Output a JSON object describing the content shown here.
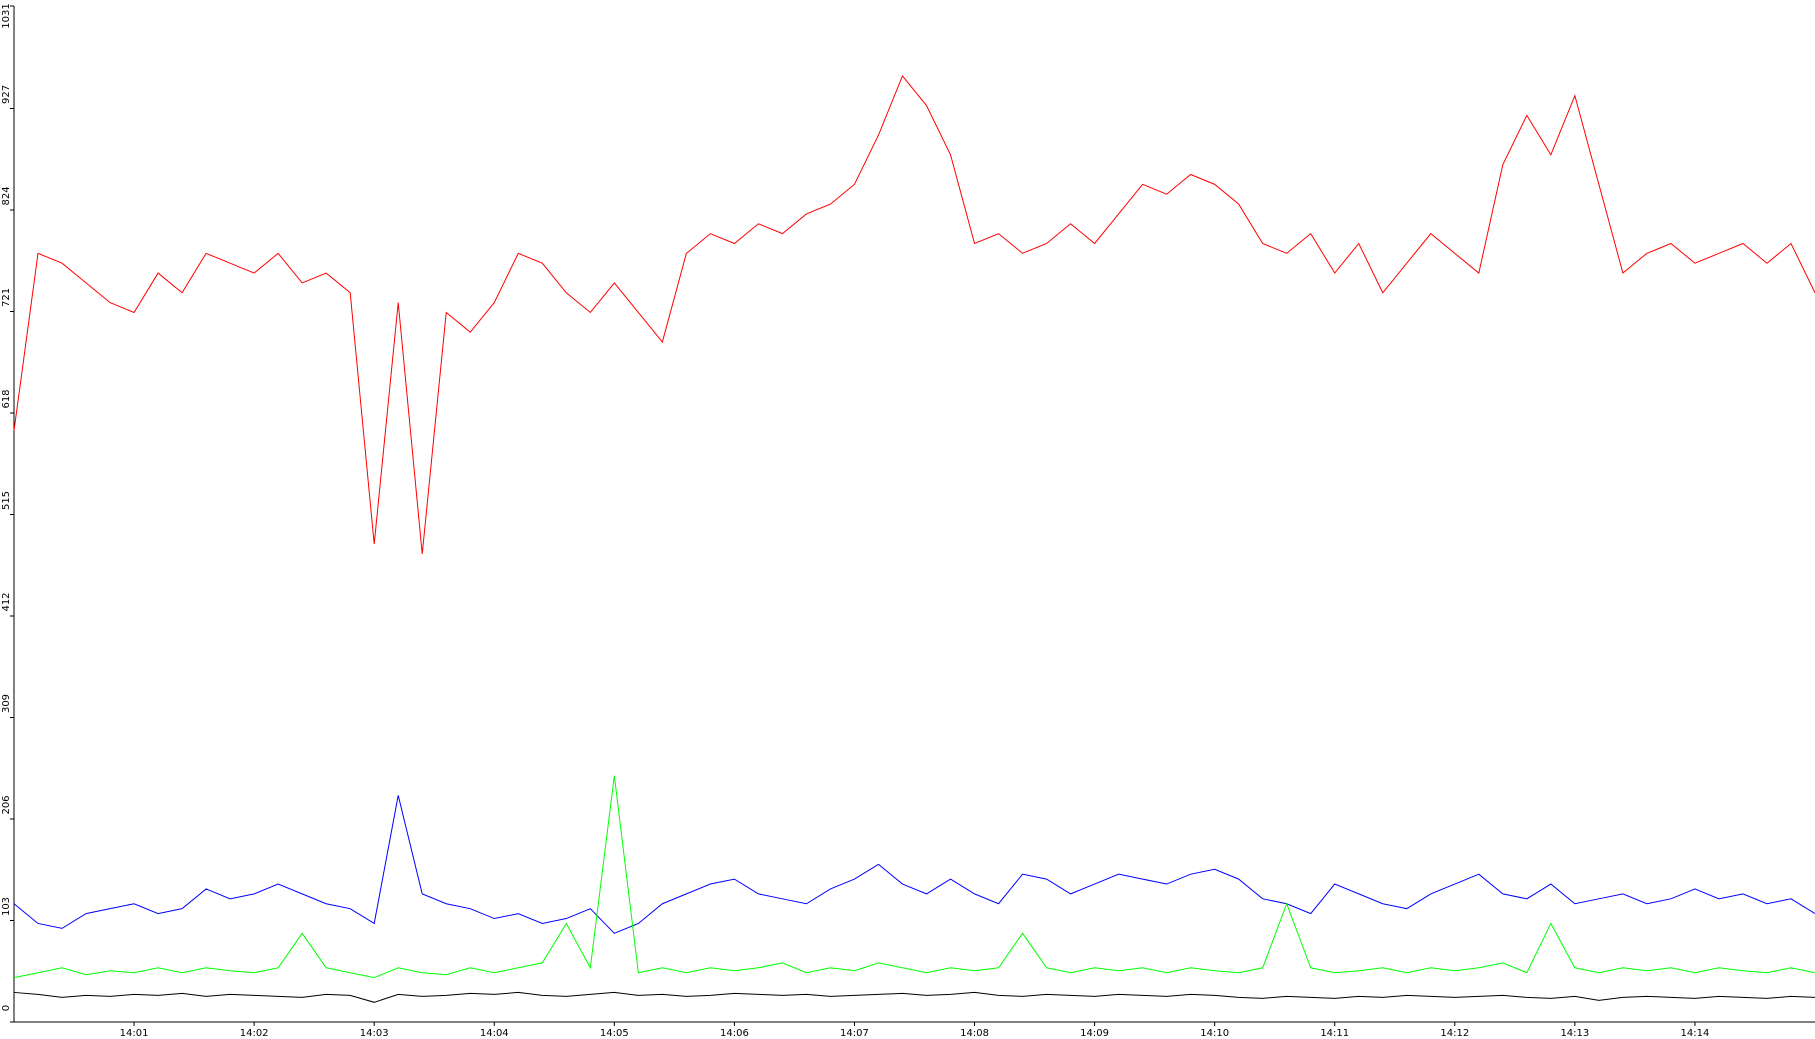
{
  "chart_data": {
    "type": "line",
    "x": [
      0,
      0.2,
      0.4,
      0.6,
      0.8,
      1,
      1.2,
      1.4,
      1.6,
      1.8,
      2,
      2.2,
      2.4,
      2.6,
      2.8,
      3,
      3.2,
      3.4,
      3.6,
      3.8,
      4,
      4.2,
      4.4,
      4.6,
      4.8,
      5,
      5.2,
      5.4,
      5.6,
      5.8,
      6,
      6.2,
      6.4,
      6.6,
      6.8,
      7,
      7.2,
      7.4,
      7.6,
      7.8,
      8,
      8.2,
      8.4,
      8.6,
      8.8,
      9,
      9.2,
      9.4,
      9.6,
      9.8,
      10,
      10.2,
      10.4,
      10.6,
      10.8,
      11,
      11.2,
      11.4,
      11.6,
      11.8,
      12,
      12.2,
      12.4,
      12.6,
      12.8,
      13,
      13.2,
      13.4,
      13.6,
      13.8,
      14,
      14.2,
      14.4,
      14.6,
      14.8,
      15
    ],
    "series": [
      {
        "color": "#ff0000",
        "values": [
          600,
          780,
          770,
          750,
          730,
          720,
          760,
          740,
          780,
          770,
          760,
          780,
          750,
          760,
          740,
          485,
          730,
          475,
          720,
          700,
          730,
          780,
          770,
          740,
          720,
          750,
          720,
          690,
          780,
          800,
          790,
          810,
          800,
          820,
          830,
          850,
          900,
          960,
          930,
          880,
          790,
          800,
          780,
          790,
          810,
          790,
          820,
          850,
          840,
          860,
          850,
          830,
          790,
          780,
          800,
          760,
          790,
          740,
          770,
          800,
          780,
          760,
          870,
          920,
          880,
          940,
          850,
          760,
          780,
          790,
          770,
          780,
          790,
          770,
          790,
          740
        ]
      },
      {
        "color": "#0000ff",
        "values": [
          120,
          100,
          95,
          110,
          115,
          120,
          110,
          115,
          135,
          125,
          130,
          140,
          130,
          120,
          115,
          100,
          230,
          130,
          120,
          115,
          105,
          110,
          100,
          105,
          115,
          90,
          100,
          120,
          130,
          140,
          145,
          130,
          125,
          120,
          135,
          145,
          160,
          140,
          130,
          145,
          130,
          120,
          150,
          145,
          130,
          140,
          150,
          145,
          140,
          150,
          155,
          145,
          125,
          120,
          110,
          140,
          130,
          120,
          115,
          130,
          140,
          150,
          130,
          125,
          140,
          120,
          125,
          130,
          120,
          125,
          135,
          125,
          130,
          120,
          125,
          110
        ]
      },
      {
        "color": "#00ff00",
        "values": [
          45,
          50,
          55,
          48,
          52,
          50,
          55,
          50,
          55,
          52,
          50,
          55,
          90,
          55,
          50,
          45,
          55,
          50,
          48,
          55,
          50,
          55,
          60,
          100,
          55,
          250,
          50,
          55,
          50,
          55,
          52,
          55,
          60,
          50,
          55,
          52,
          60,
          55,
          50,
          55,
          52,
          55,
          90,
          55,
          50,
          55,
          52,
          55,
          50,
          55,
          52,
          50,
          55,
          120,
          55,
          50,
          52,
          55,
          50,
          55,
          52,
          55,
          60,
          50,
          100,
          55,
          50,
          55,
          52,
          55,
          50,
          55,
          52,
          50,
          55,
          50
        ]
      },
      {
        "color": "#000000",
        "values": [
          30,
          28,
          25,
          27,
          26,
          28,
          27,
          29,
          26,
          28,
          27,
          26,
          25,
          28,
          27,
          20,
          28,
          26,
          27,
          29,
          28,
          30,
          27,
          26,
          28,
          30,
          27,
          28,
          26,
          27,
          29,
          28,
          27,
          28,
          26,
          27,
          28,
          29,
          27,
          28,
          30,
          27,
          26,
          28,
          27,
          26,
          28,
          27,
          26,
          28,
          27,
          25,
          24,
          26,
          25,
          24,
          26,
          25,
          27,
          26,
          25,
          26,
          27,
          25,
          24,
          26,
          22,
          25,
          26,
          25,
          24,
          26,
          25,
          24,
          26,
          25
        ]
      }
    ],
    "xlim": [
      0,
      15
    ],
    "xticks": [
      {
        "value": 1,
        "label": "14:01"
      },
      {
        "value": 2,
        "label": "14:02"
      },
      {
        "value": 3,
        "label": "14:03"
      },
      {
        "value": 4,
        "label": "14:04"
      },
      {
        "value": 5,
        "label": "14:05"
      },
      {
        "value": 6,
        "label": "14:06"
      },
      {
        "value": 7,
        "label": "14:07"
      },
      {
        "value": 8,
        "label": "14:08"
      },
      {
        "value": 9,
        "label": "14:09"
      },
      {
        "value": 10,
        "label": "14:10"
      },
      {
        "value": 11,
        "label": "14:11"
      },
      {
        "value": 12,
        "label": "14:12"
      },
      {
        "value": 13,
        "label": "14:13"
      },
      {
        "value": 14,
        "label": "14:14"
      }
    ],
    "ylim": [
      0,
      1031
    ],
    "yticks": [
      0,
      103,
      206,
      309,
      412,
      515,
      618,
      721,
      824,
      927,
      1031
    ]
  }
}
